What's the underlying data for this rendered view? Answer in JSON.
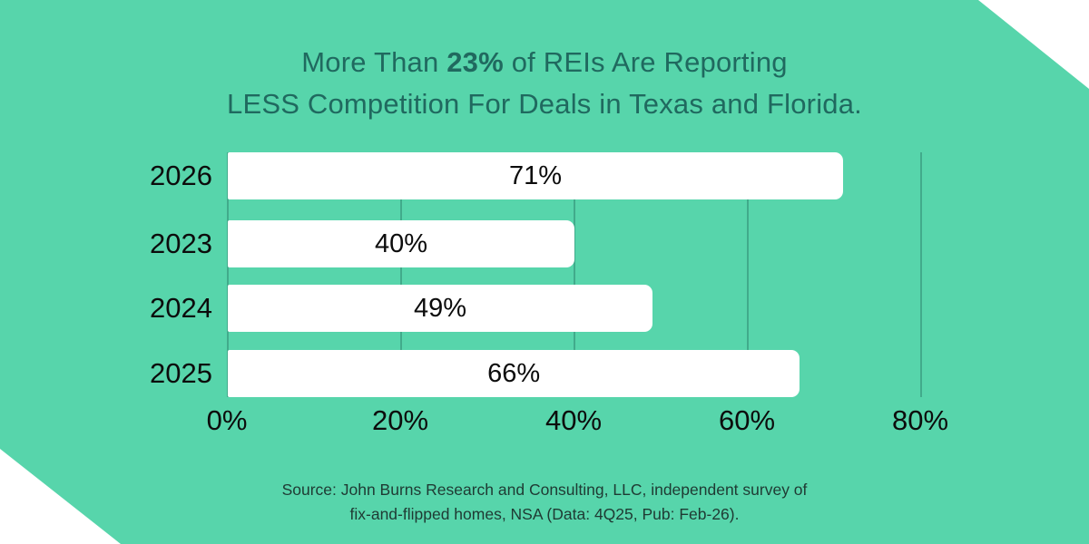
{
  "title": {
    "prefix": "More Than ",
    "highlight": "23%",
    "suffix": " of REIs Are Reporting",
    "line2": "LESS Competition For Deals in Texas and Florida."
  },
  "chart_data": {
    "type": "bar",
    "orientation": "horizontal",
    "title": "More Than 23% of REIs Are Reporting LESS Competition For Deals in Texas and Florida.",
    "categories": [
      "2023",
      "2024",
      "2025",
      "2026"
    ],
    "values": [
      40,
      49,
      66,
      71
    ],
    "value_labels": [
      "40%",
      "49%",
      "66%",
      "71%"
    ],
    "x_ticks": [
      0,
      20,
      40,
      60,
      80
    ],
    "x_tick_labels": [
      "0%",
      "20%",
      "40%",
      "60%",
      "80%"
    ],
    "xlim": [
      0,
      85
    ],
    "grid": "vertical-gridlines-on",
    "legend": "none",
    "bar_color": "#ffffff",
    "label_position": "center-of-bar"
  },
  "source": {
    "line1": "Source: John Burns Research and Consulting, LLC, independent survey of",
    "line2": "fix-and-flipped homes, NSA (Data: 4Q25, Pub: Feb-26)."
  },
  "colors": {
    "background": "#57d5ab",
    "page_corners": "#ffffff",
    "title": "#20695f",
    "bar_fill": "#ffffff",
    "label_text": "#0c0c0c",
    "gridline": "rgba(16,77,66,0.30)",
    "source_text": "#1f3a33"
  }
}
